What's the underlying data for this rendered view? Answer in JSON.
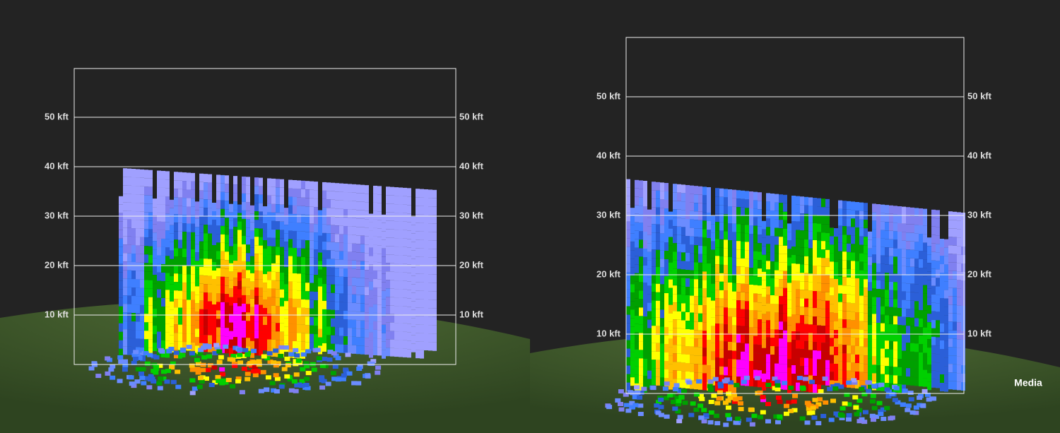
{
  "panels": [
    {
      "levels": [
        "50 kft",
        "40 kft",
        "30 kft",
        "20 kft",
        "10 kft"
      ]
    },
    {
      "levels": [
        "50 kft",
        "40 kft",
        "30 kft",
        "20 kft",
        "10 kft"
      ]
    }
  ],
  "watermark": "Media"
}
